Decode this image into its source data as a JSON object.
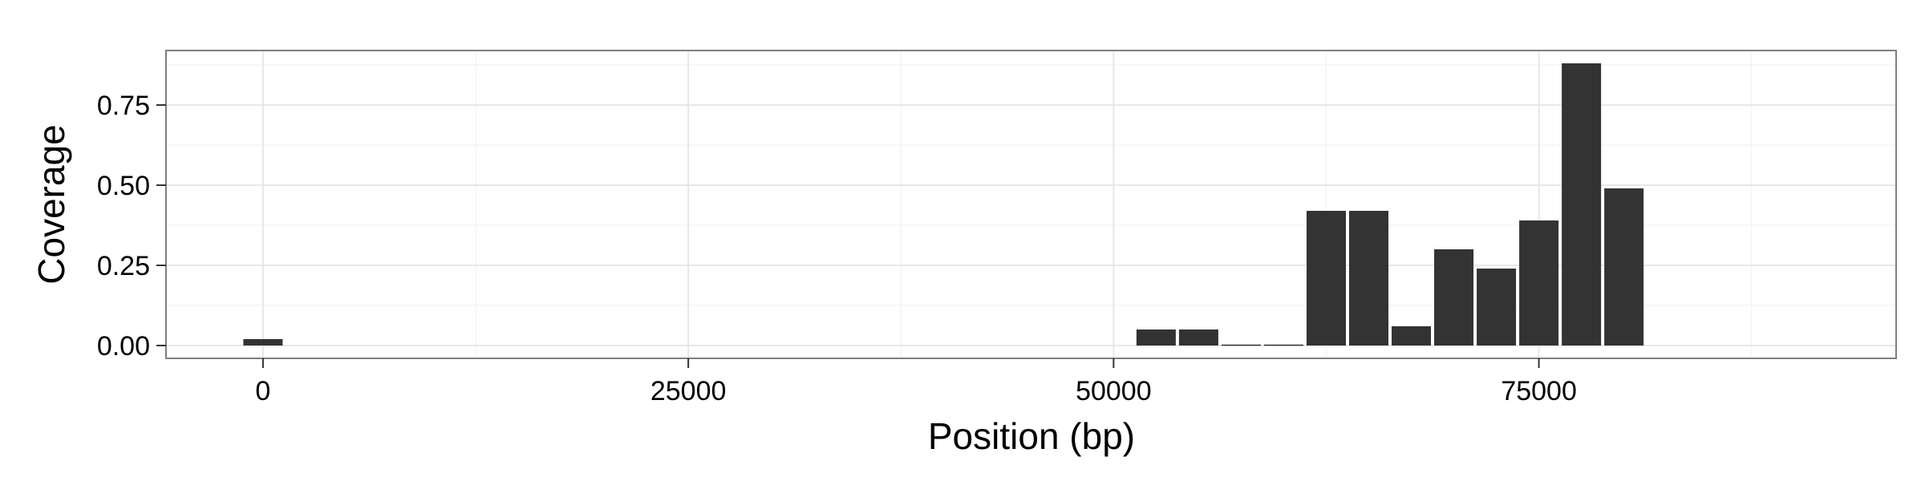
{
  "chart_data": {
    "type": "bar",
    "xlabel": "Position (bp)",
    "ylabel": "Coverage",
    "xlim": [
      -5700,
      96000
    ],
    "ylim": [
      -0.04,
      0.92
    ],
    "x_ticks": [
      0,
      25000,
      50000,
      75000
    ],
    "x_tick_labels": [
      "0",
      "25000",
      "50000",
      "75000"
    ],
    "y_ticks": [
      0.0,
      0.25,
      0.5,
      0.75
    ],
    "y_tick_labels": [
      "0.00",
      "0.25",
      "0.50",
      "0.75"
    ],
    "bin_width": 2500,
    "grid": true,
    "bar_color": "#333333",
    "x": [
      0,
      52500,
      55000,
      57500,
      60000,
      62500,
      65000,
      67500,
      70000,
      72500,
      75000,
      77500,
      80000
    ],
    "values": [
      0.02,
      0.05,
      0.05,
      0.003,
      0.003,
      0.42,
      0.42,
      0.06,
      0.3,
      0.24,
      0.39,
      0.88,
      0.49
    ]
  }
}
